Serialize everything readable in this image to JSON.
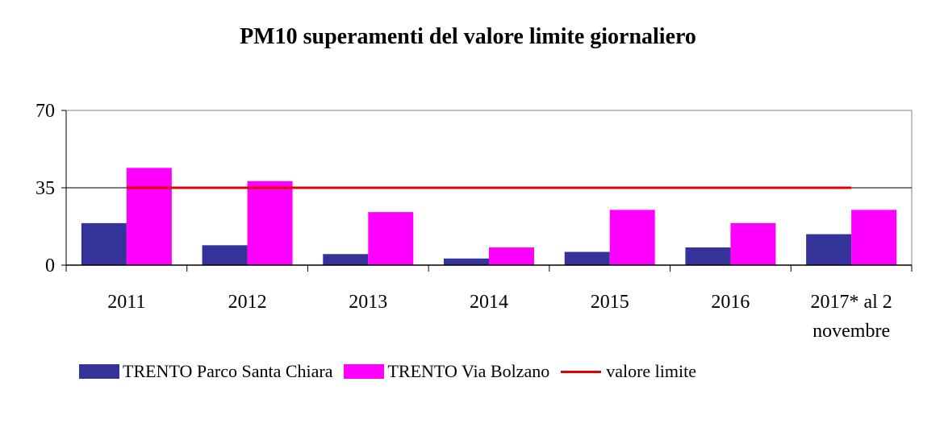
{
  "chart_data": {
    "type": "bar",
    "title": "PM10 superamenti del valore limite giornaliero",
    "categories": [
      [
        "2011"
      ],
      [
        "2012"
      ],
      [
        "2013"
      ],
      [
        "2014"
      ],
      [
        "2015"
      ],
      [
        "2016"
      ],
      [
        "2017* al 2",
        "novembre"
      ]
    ],
    "series": [
      {
        "name": "TRENTO Parco Santa Chiara",
        "values": [
          19,
          9,
          5,
          3,
          6,
          8,
          14
        ],
        "color": "#333399"
      },
      {
        "name": "TRENTO Via Bolzano",
        "values": [
          44,
          38,
          24,
          8,
          25,
          19,
          25
        ],
        "color": "#ff00ff"
      }
    ],
    "reference_line": {
      "name": "valore limite",
      "value": 35,
      "color": "#e00000"
    },
    "ylim": [
      0,
      70
    ],
    "yticks": [
      "0",
      "35",
      "70"
    ],
    "xlabel": "",
    "ylabel": "",
    "grid": "horizontal at 35",
    "legend_position": "bottom"
  }
}
